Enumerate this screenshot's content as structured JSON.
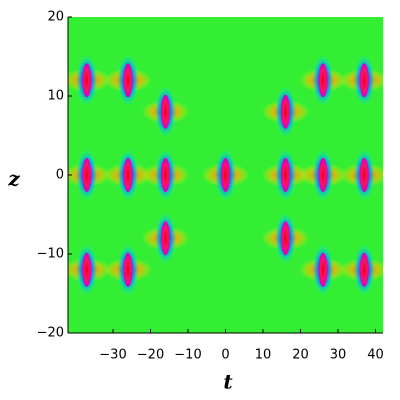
{
  "chart_data": {
    "type": "density",
    "x_label": "t",
    "y_label": "z",
    "xlim": [
      -42,
      42
    ],
    "ylim": [
      -20,
      20
    ],
    "xticks": [
      {
        "value": -30,
        "label": "−30"
      },
      {
        "value": -20,
        "label": "−20"
      },
      {
        "value": -10,
        "label": "−10"
      },
      0,
      10,
      20,
      30,
      40
    ],
    "yticks": [
      {
        "value": -20,
        "label": "−20"
      },
      {
        "value": -10,
        "label": "−10"
      },
      0,
      10,
      20
    ],
    "background_color": "#33ee33",
    "x": [
      -37,
      -26,
      -16,
      -37,
      -26,
      -16,
      -37,
      -26,
      -16,
      0,
      16,
      26,
      37,
      16,
      26,
      37,
      16,
      26,
      37
    ],
    "y": [
      12,
      12,
      8,
      0,
      0,
      0,
      -12,
      -12,
      -8,
      0,
      8,
      12,
      12,
      0,
      0,
      0,
      -8,
      -12,
      -12
    ]
  }
}
